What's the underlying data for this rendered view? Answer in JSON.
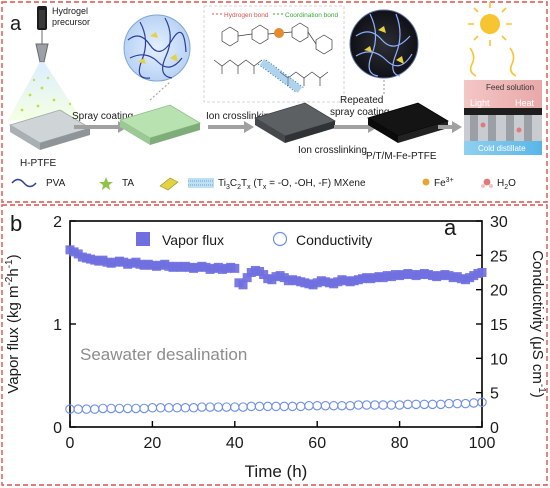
{
  "panel_a": {
    "panel_letter": "a",
    "precursor_label_line1": "Hydrogel",
    "precursor_label_line2": "precursor",
    "base_label": "H-PTFE",
    "step1_label": "Spray coating",
    "step2_label": "Ion crosslinking",
    "step3_label_line1": "Repeated",
    "step3_label_line2": "spray coating",
    "step4_label": "Ion crosslinking",
    "product_label": "P/T/M-Fe-PTFE",
    "hydrogen_bond_label": "Hydrogen bond",
    "coordination_bond_label": "Coordination bond",
    "feed_label": "Feed solution",
    "light_label": "Light",
    "heat_label": "Heat",
    "cold_label": "Cold distillate",
    "legend": {
      "pva": "PVA",
      "ta": "TA",
      "mxene_prefix": "Ti",
      "mxene_sub1": "3",
      "mxene_mid": "C",
      "mxene_sub2": "2",
      "mxene_mid2": "T",
      "mxene_sub3": "x",
      "mxene_paren_open": " (T",
      "mxene_sub4": "x",
      "mxene_suffix": " = -O, -OH, -F) MXene",
      "fe_base": "Fe",
      "fe_sup": "3+",
      "water_h": "H",
      "water_sub": "2",
      "water_o": "O"
    },
    "colors": {
      "border": "#d9534f"
    }
  },
  "panel_b": {
    "panel_letter": "b",
    "corner_letter": "a",
    "annotation": "Seawater desalination",
    "colors": {
      "flux": "#6f6fe0",
      "cond": "#6f8fe6",
      "border": "#d9534f"
    }
  },
  "chart_data": {
    "type": "scatter",
    "x_label": "Time (h)",
    "y_left_label": "Vapor flux (kg m",
    "y_left_label_sup1": "-2",
    "y_left_label_mid": "h",
    "y_left_label_sup2": "-1",
    "y_left_label_end": ")",
    "y_right_label": "Conductivity (μS cm",
    "y_right_label_sup": "-1",
    "y_right_label_end": ")",
    "xlim": [
      0,
      100
    ],
    "ylim_left": [
      0,
      2
    ],
    "ylim_right": [
      0,
      30
    ],
    "x_ticks": [
      "0",
      "20",
      "40",
      "60",
      "80",
      "100"
    ],
    "y_left_ticks": [
      "0",
      "1",
      "2"
    ],
    "y_right_ticks": [
      "0",
      "5",
      "10",
      "15",
      "20",
      "25",
      "30"
    ],
    "legend": "top",
    "grid": false,
    "series": [
      {
        "name": "Vapor flux",
        "axis": "left",
        "marker": "filled-square",
        "x": [
          0,
          1,
          2,
          3,
          4,
          5,
          6,
          7,
          8,
          9,
          10,
          11,
          12,
          13,
          14,
          15,
          16,
          17,
          18,
          19,
          20,
          21,
          22,
          23,
          24,
          25,
          26,
          27,
          28,
          29,
          30,
          31,
          32,
          33,
          34,
          35,
          36,
          37,
          38,
          39,
          40,
          41,
          42,
          43,
          44,
          45,
          46,
          47,
          48,
          49,
          50,
          51,
          52,
          53,
          54,
          55,
          56,
          57,
          58,
          59,
          60,
          61,
          62,
          63,
          64,
          65,
          66,
          67,
          68,
          69,
          70,
          71,
          72,
          73,
          74,
          75,
          76,
          77,
          78,
          79,
          80,
          81,
          82,
          83,
          84,
          85,
          86,
          87,
          88,
          89,
          90,
          91,
          92,
          93,
          94,
          95,
          96,
          97,
          98,
          99,
          100
        ],
        "y": [
          1.72,
          1.7,
          1.68,
          1.65,
          1.64,
          1.63,
          1.62,
          1.61,
          1.62,
          1.6,
          1.59,
          1.6,
          1.61,
          1.6,
          1.58,
          1.59,
          1.6,
          1.58,
          1.57,
          1.58,
          1.57,
          1.56,
          1.57,
          1.58,
          1.56,
          1.55,
          1.56,
          1.55,
          1.56,
          1.55,
          1.54,
          1.55,
          1.56,
          1.55,
          1.53,
          1.54,
          1.55,
          1.53,
          1.54,
          1.55,
          1.54,
          1.4,
          1.38,
          1.45,
          1.5,
          1.52,
          1.51,
          1.48,
          1.44,
          1.43,
          1.46,
          1.47,
          1.45,
          1.42,
          1.43,
          1.42,
          1.41,
          1.4,
          1.39,
          1.38,
          1.4,
          1.42,
          1.41,
          1.4,
          1.39,
          1.41,
          1.43,
          1.42,
          1.41,
          1.42,
          1.43,
          1.44,
          1.45,
          1.44,
          1.45,
          1.46,
          1.45,
          1.47,
          1.46,
          1.48,
          1.47,
          1.48,
          1.49,
          1.48,
          1.47,
          1.48,
          1.49,
          1.48,
          1.47,
          1.46,
          1.47,
          1.48,
          1.47,
          1.45,
          1.46,
          1.44,
          1.43,
          1.45,
          1.47,
          1.49,
          1.5
        ]
      },
      {
        "name": "Conductivity",
        "axis": "right",
        "marker": "open-circle",
        "x": [
          0,
          2,
          4,
          6,
          8,
          10,
          12,
          14,
          16,
          18,
          20,
          22,
          24,
          26,
          28,
          30,
          32,
          34,
          36,
          38,
          40,
          42,
          44,
          46,
          48,
          50,
          52,
          54,
          56,
          58,
          60,
          62,
          64,
          66,
          68,
          70,
          72,
          74,
          76,
          78,
          80,
          82,
          84,
          86,
          88,
          90,
          92,
          94,
          96,
          98,
          100
        ],
        "y": [
          2.6,
          2.6,
          2.6,
          2.6,
          2.7,
          2.7,
          2.7,
          2.7,
          2.7,
          2.7,
          2.8,
          2.8,
          2.8,
          2.8,
          2.8,
          2.8,
          2.9,
          2.9,
          2.9,
          2.9,
          2.9,
          2.9,
          3.0,
          3.0,
          3.0,
          3.0,
          3.0,
          3.0,
          3.0,
          3.1,
          3.1,
          3.1,
          3.1,
          3.1,
          3.1,
          3.2,
          3.2,
          3.2,
          3.2,
          3.2,
          3.2,
          3.3,
          3.3,
          3.3,
          3.3,
          3.3,
          3.4,
          3.4,
          3.4,
          3.5,
          3.6
        ]
      }
    ]
  }
}
